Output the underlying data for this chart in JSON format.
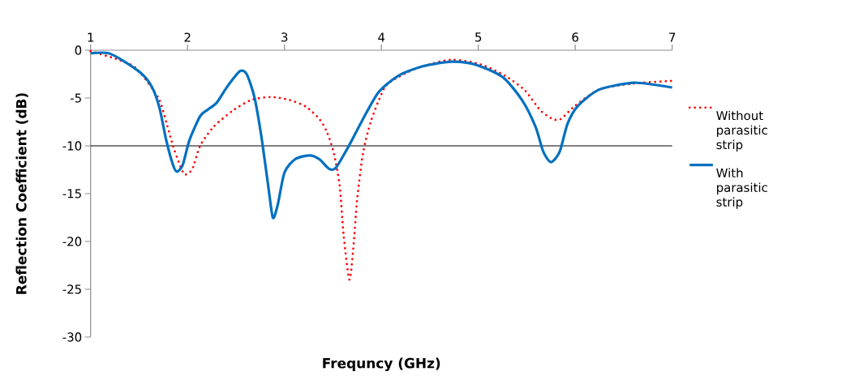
{
  "chart_data": {
    "type": "line",
    "xlabel": "Frequncy (GHz)",
    "ylabel": "Reflection Coefficient (dB)",
    "xlim": [
      1,
      7
    ],
    "ylim": [
      -30,
      0
    ],
    "xticks": [
      1,
      2,
      3,
      4,
      5,
      6,
      7
    ],
    "yticks": [
      0,
      -5,
      -10,
      -15,
      -20,
      -25,
      -30
    ],
    "grid": false,
    "legend": "right",
    "marker": "none",
    "ref_lines": [
      {
        "axis": "y",
        "value": -10,
        "color": "#000000"
      }
    ],
    "series": [
      {
        "name": "Without parasitic strip",
        "color": "#ff0000",
        "line_style": "dotted",
        "x": [
          1.0,
          1.29,
          1.46,
          1.6,
          1.71,
          1.78,
          1.85,
          1.91,
          1.97,
          2.05,
          2.13,
          2.27,
          2.47,
          2.66,
          2.86,
          3.05,
          3.22,
          3.36,
          3.44,
          3.51,
          3.57,
          3.61,
          3.67,
          3.71,
          3.75,
          3.81,
          3.89,
          4.0,
          4.08,
          4.36,
          4.72,
          5.03,
          5.28,
          5.48,
          5.64,
          5.77,
          5.85,
          6.0,
          6.25,
          6.59,
          7.0
        ],
        "values": [
          -0.1,
          -1.0,
          -1.8,
          -3.5,
          -5.2,
          -7.5,
          -10.0,
          -11.7,
          -13.0,
          -12.4,
          -10.0,
          -8.0,
          -6.3,
          -5.2,
          -4.9,
          -5.2,
          -5.9,
          -7.2,
          -8.6,
          -10.8,
          -14.2,
          -19.3,
          -24.0,
          -20.7,
          -15.6,
          -10.8,
          -7.5,
          -4.6,
          -3.4,
          -1.9,
          -1.0,
          -1.5,
          -2.7,
          -4.2,
          -6.3,
          -7.2,
          -7.2,
          -5.8,
          -4.1,
          -3.5,
          -3.2
        ]
      },
      {
        "name": "With parasitic strip",
        "color": "#0070c0",
        "line_style": "solid",
        "x": [
          1.0,
          1.18,
          1.32,
          1.52,
          1.63,
          1.71,
          1.78,
          1.85,
          1.89,
          1.95,
          2.02,
          2.13,
          2.21,
          2.3,
          2.41,
          2.54,
          2.61,
          2.69,
          2.76,
          2.83,
          2.88,
          2.93,
          3.0,
          3.11,
          3.26,
          3.36,
          3.46,
          3.53,
          3.67,
          3.81,
          3.97,
          4.17,
          4.42,
          4.72,
          4.97,
          5.25,
          5.45,
          5.59,
          5.67,
          5.75,
          5.84,
          5.92,
          6.03,
          6.25,
          6.59,
          6.81,
          7.0
        ],
        "values": [
          -0.3,
          -0.3,
          -1.0,
          -2.4,
          -3.8,
          -6.0,
          -9.4,
          -12.0,
          -12.7,
          -12.0,
          -9.4,
          -6.9,
          -6.2,
          -5.5,
          -3.8,
          -2.2,
          -2.5,
          -4.9,
          -8.9,
          -14.0,
          -17.5,
          -16.2,
          -12.8,
          -11.4,
          -11.0,
          -11.4,
          -12.4,
          -12.3,
          -9.9,
          -7.2,
          -4.4,
          -2.7,
          -1.7,
          -1.2,
          -1.5,
          -2.8,
          -5.2,
          -8.0,
          -10.6,
          -11.7,
          -10.6,
          -7.7,
          -5.8,
          -4.1,
          -3.4,
          -3.6,
          -3.9
        ]
      }
    ]
  }
}
